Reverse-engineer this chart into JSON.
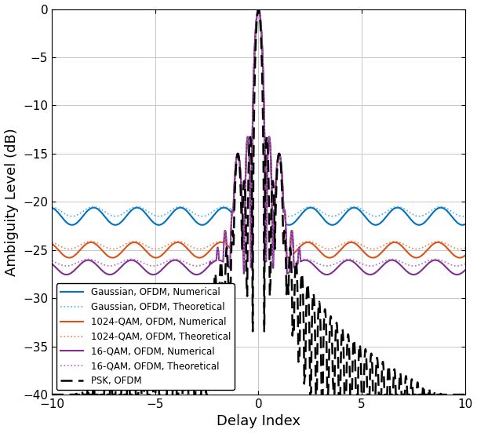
{
  "title": "",
  "xlabel": "Delay Index",
  "ylabel": "Ambiguity Level (dB)",
  "xlim": [
    -10,
    10
  ],
  "ylim": [
    -40,
    0
  ],
  "yticks": [
    0,
    -5,
    -10,
    -15,
    -20,
    -25,
    -30,
    -35,
    -40
  ],
  "xticks": [
    -10,
    -5,
    0,
    5,
    10
  ],
  "gaussian_numerical_color": "#0072BD",
  "gaussian_theoretical_color": "#4DAEEE",
  "qam1024_numerical_color": "#D95319",
  "qam1024_theoretical_color": "#E8825A",
  "qam16_numerical_color": "#7E2F8E",
  "qam16_theoretical_color": "#B06AC0",
  "psk_color": "#000000",
  "gaussian_level": -21.5,
  "qam1024_level": -25.0,
  "qam16_level": -26.8,
  "legend_loc": "lower left",
  "figsize": [
    6.08,
    5.52
  ],
  "dpi": 100
}
